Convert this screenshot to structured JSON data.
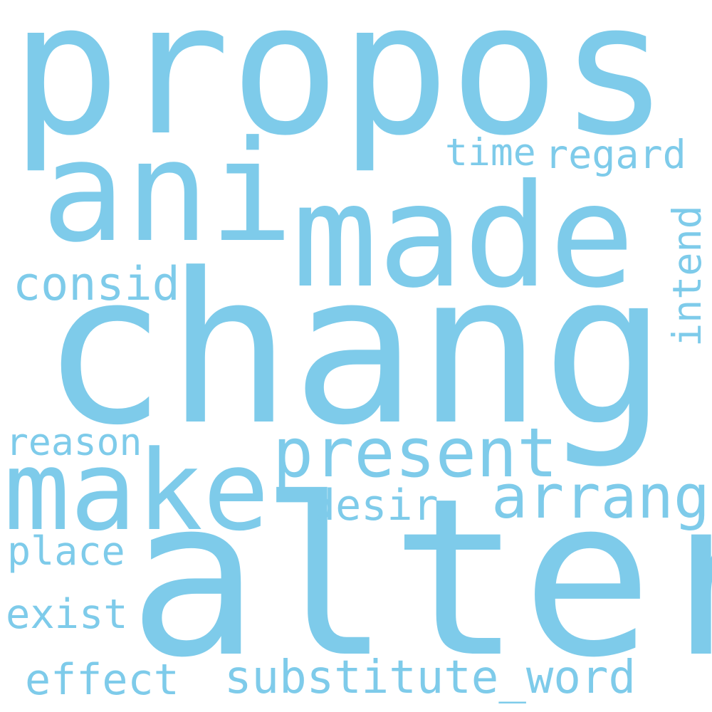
{
  "word_color": "#7ecbea",
  "background_color": "#ffffff",
  "words": {
    "propos": "propos",
    "chang": "chang",
    "alter": "alter",
    "ani": "ani",
    "made": "made",
    "make": "make",
    "present": "present",
    "arrang": "arrang",
    "time": "time",
    "regard": "regard",
    "consid": "consid",
    "intend": "intend",
    "reason": "reason",
    "desir": "desir",
    "place": "place",
    "exist": "exist",
    "effect": "effect",
    "substitute_word": "substitute_word"
  }
}
